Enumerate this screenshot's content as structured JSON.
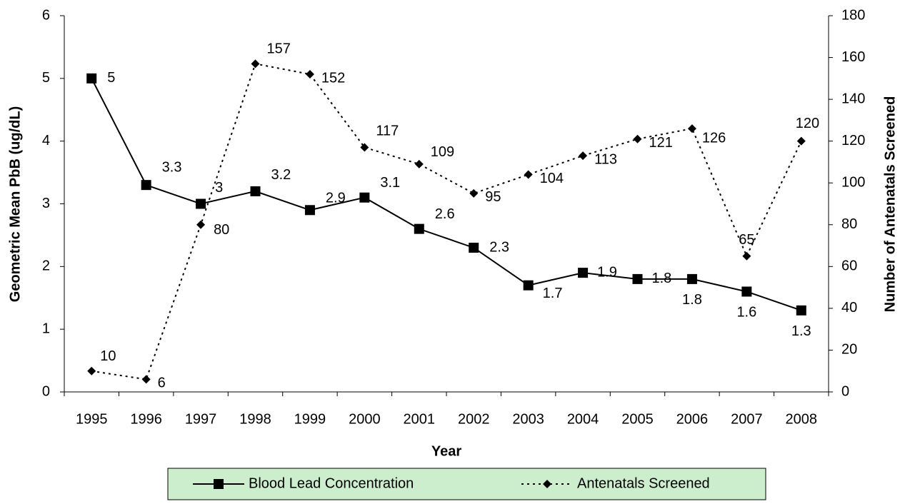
{
  "chart_data": {
    "type": "line",
    "x_label": "Year",
    "y_label": "Geometric Mean PbB (ug/dL)",
    "y2_label": "Number of Antenatals Screened",
    "categories": [
      "1995",
      "1996",
      "1997",
      "1998",
      "1999",
      "2000",
      "2001",
      "2002",
      "2003",
      "2004",
      "2005",
      "2006",
      "2007",
      "2008"
    ],
    "series": [
      {
        "name": "Blood Lead Concentration",
        "color": "#000000",
        "marker": "square",
        "dash": "solid",
        "values": [
          5,
          3.3,
          3,
          3.2,
          2.9,
          3.1,
          2.6,
          2.3,
          1.7,
          1.9,
          1.8,
          1.8,
          1.6,
          1.3
        ]
      },
      {
        "name": "Antenatals Screened",
        "color": "#000000",
        "marker": "diamond",
        "dash": "dotted",
        "axis": "y2",
        "values": [
          10,
          6,
          80,
          157,
          152,
          117,
          109,
          95,
          104,
          113,
          121,
          126,
          65,
          120
        ]
      }
    ],
    "ylim": [
      0,
      6
    ],
    "yticks": [
      0,
      1,
      2,
      3,
      4,
      5,
      6
    ],
    "y2lim": [
      0,
      180
    ],
    "y2ticks": [
      0,
      20,
      40,
      60,
      80,
      100,
      120,
      140,
      160,
      180
    ],
    "legend_color": "#cceecc"
  }
}
